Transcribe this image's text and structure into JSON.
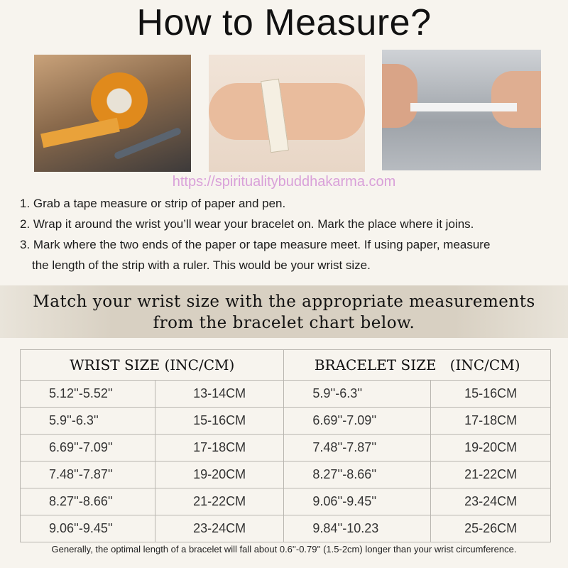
{
  "title": "How to Measure?",
  "steps": [
    "1. Grab a tape measure or strip of paper and pen.",
    "2. Wrap it around the wrist you’ll wear your bracelet on. Mark the place where it joins.",
    "3. Mark where the two ends of the paper or tape measure meet. If using paper, measure",
    "the length of the strip with a ruler. This would be your wrist size."
  ],
  "banner": [
    "Match your wrist size with the appropriate measurements",
    "from the bracelet chart below."
  ],
  "table": {
    "headers": [
      "WRIST SIZE (INC/CM)",
      "BRACELET SIZE   (INC/CM)"
    ],
    "rows": [
      [
        "5.12''-5.52''",
        "13-14CM",
        "5.9''-6.3''",
        "15-16CM"
      ],
      [
        "5.9''-6.3''",
        "15-16CM",
        "6.69''-7.09''",
        "17-18CM"
      ],
      [
        "6.69''-7.09''",
        "17-18CM",
        "7.48''-7.87''",
        "19-20CM"
      ],
      [
        "7.48''-7.87''",
        "19-20CM",
        "8.27''-8.66''",
        "21-22CM"
      ],
      [
        "8.27''-8.66''",
        "21-22CM",
        "9.06''-9.45''",
        "23-24CM"
      ],
      [
        "9.06''-9.45''",
        "23-24CM",
        "9.84''-10.23",
        "25-26CM"
      ]
    ]
  },
  "watermark": "https://spiritualitybuddhakarma.com",
  "note": "Generally, the optimal length of a bracelet will fall about 0.6''-0.79'' (1.5-2cm) longer than your wrist circumference."
}
